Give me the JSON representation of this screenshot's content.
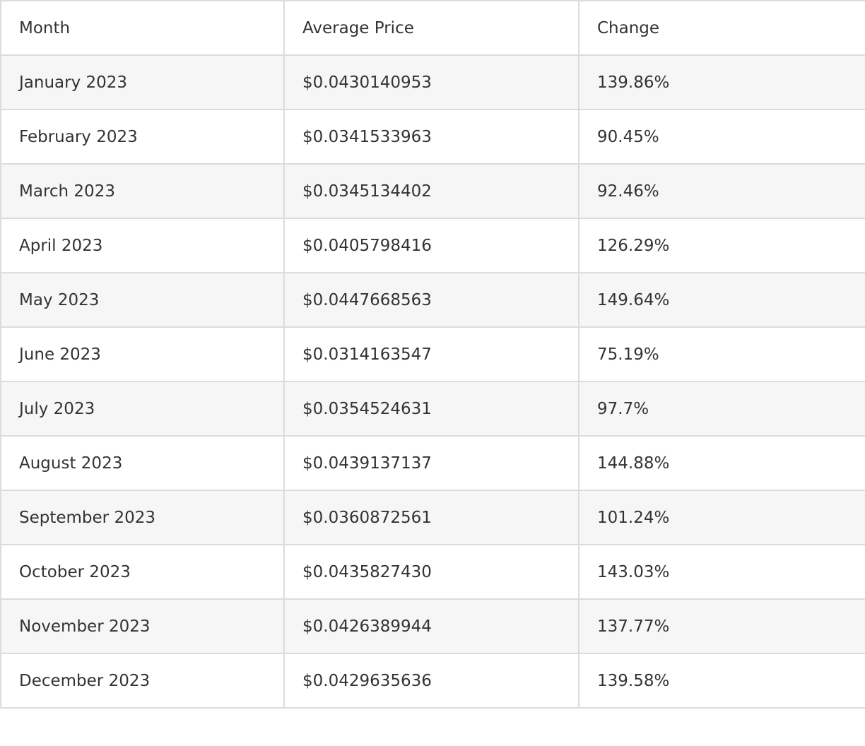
{
  "table": {
    "header": [
      "Month",
      "Average Price",
      "Change"
    ],
    "rows": [
      [
        "January 2023",
        "$0.0430140953",
        "139.86%"
      ],
      [
        "February 2023",
        "$0.0341533963",
        "90.45%"
      ],
      [
        "March 2023",
        "$0.0345134402",
        "92.46%"
      ],
      [
        "April 2023",
        "$0.0405798416",
        "126.29%"
      ],
      [
        "May 2023",
        "$0.0447668563",
        "149.64%"
      ],
      [
        "June 2023",
        "$0.0314163547",
        "75.19%"
      ],
      [
        "July 2023",
        "$0.0354524631",
        "97.7%"
      ],
      [
        "August 2023",
        "$0.0439137137",
        "144.88%"
      ],
      [
        "September 2023",
        "$0.0360872561",
        "101.24%"
      ],
      [
        "October 2023",
        "$0.0435827430",
        "143.03%"
      ],
      [
        "November 2023",
        "$0.0426389944",
        "137.77%"
      ],
      [
        "December 2023",
        "$0.0429635636",
        "139.58%"
      ]
    ]
  }
}
